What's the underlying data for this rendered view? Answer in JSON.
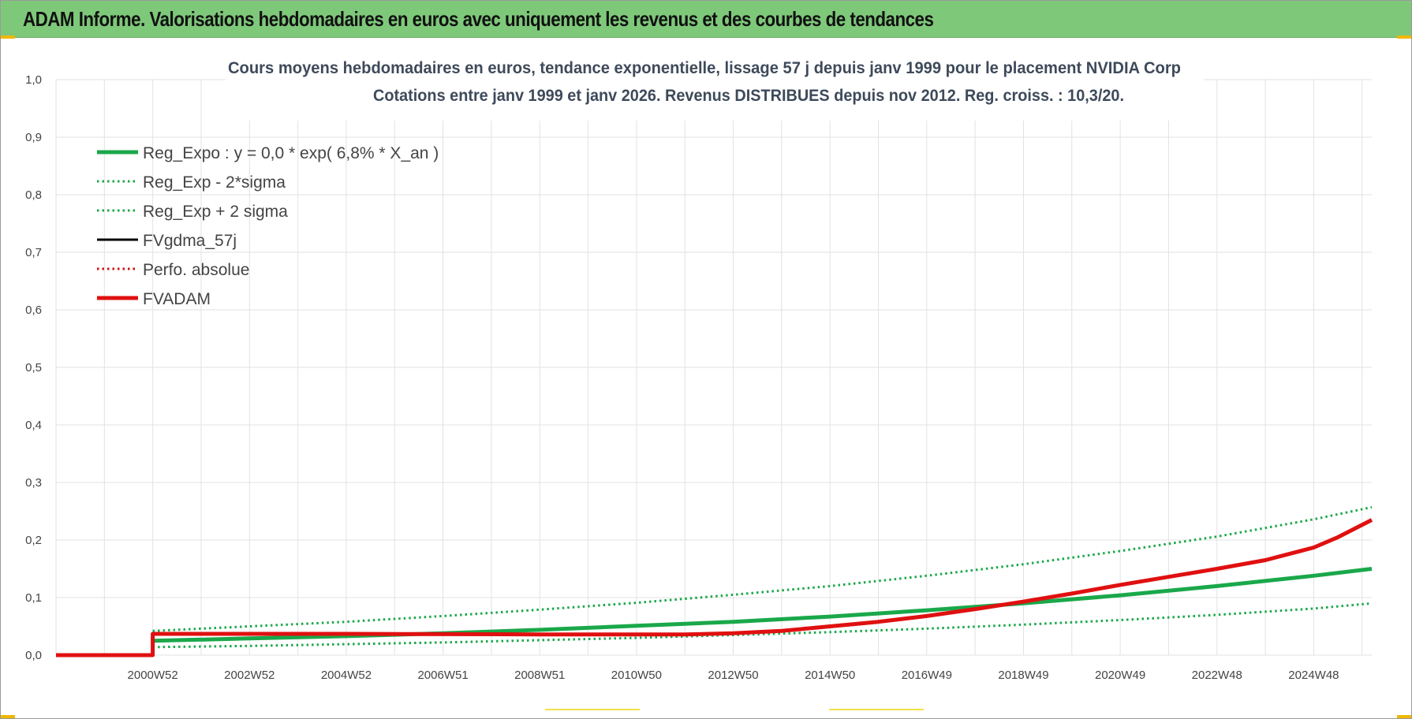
{
  "header": {
    "title": "ADAM Informe. Valorisations hebdomadaires en euros avec uniquement les revenus et des courbes de tendances"
  },
  "colors": {
    "banner": "#7ec87a",
    "reg_expo": "#1aa84a",
    "fvadam": "#e01010",
    "fvgdma": "#000000",
    "perfo": "#cc1010",
    "grid": "#e2e2e2",
    "accent": "#f0b800"
  },
  "chart_data": {
    "type": "line",
    "title": "Cours moyens hebdomadaires en euros, tendance exponentielle, lissage 57 j depuis janv 1999  pour le placement NVIDIA Corp",
    "subtitle": "Cotations entre janv 1999 et janv 2026. Revenus DISTRIBUES depuis nov 2012.  Reg. croiss. : 10,3/20.",
    "xlabel": "",
    "ylabel": "",
    "x_range": [
      1999.0,
      2026.2
    ],
    "ylim": [
      0.0,
      1.0
    ],
    "y_ticks": [
      "1,0",
      "0,9",
      "0,8",
      "0,7",
      "0,6",
      "0,5",
      "0,4",
      "0,3",
      "0,2",
      "0,1",
      "0,0"
    ],
    "x_ticks": [
      {
        "label": "2000W52",
        "x": 2001.0
      },
      {
        "label": "2002W52",
        "x": 2003.0
      },
      {
        "label": "2004W52",
        "x": 2005.0
      },
      {
        "label": "2006W51",
        "x": 2007.0
      },
      {
        "label": "2008W51",
        "x": 2009.0
      },
      {
        "label": "2010W50",
        "x": 2011.0
      },
      {
        "label": "2012W50",
        "x": 2013.0
      },
      {
        "label": "2014W50",
        "x": 2015.0
      },
      {
        "label": "2016W49",
        "x": 2017.0
      },
      {
        "label": "2018W49",
        "x": 2019.0
      },
      {
        "label": "2020W49",
        "x": 2021.0
      },
      {
        "label": "2022W48",
        "x": 2023.0
      },
      {
        "label": "2024W48",
        "x": 2025.0
      }
    ],
    "grid": true,
    "legend_position": "top-left",
    "legend": [
      {
        "key": "reg_expo",
        "label": "Reg_Expo : y = 0,0 * exp( 6,8% *  X_an )",
        "style": "solid-thick",
        "color": "#1aa84a"
      },
      {
        "key": "reg_minus",
        "label": "Reg_Exp - 2*sigma",
        "style": "dotted",
        "color": "#1aa84a"
      },
      {
        "key": "reg_plus",
        "label": "Reg_Exp + 2 sigma",
        "style": "dotted",
        "color": "#1aa84a"
      },
      {
        "key": "fvgdma",
        "label": "FVgdma_57j",
        "style": "solid",
        "color": "#000000"
      },
      {
        "key": "perfo",
        "label": "Perfo. absolue",
        "style": "dotted",
        "color": "#cc1010"
      },
      {
        "key": "fvadam",
        "label": "FVADAM",
        "style": "solid-thick",
        "color": "#e01010"
      }
    ],
    "series": [
      {
        "name": "Reg_Expo",
        "style": "solid-thick",
        "color": "#1aa84a",
        "x": [
          2001.0,
          2003.0,
          2005.0,
          2007.0,
          2009.0,
          2011.0,
          2013.0,
          2015.0,
          2017.0,
          2019.0,
          2021.0,
          2023.0,
          2025.0,
          2026.2
        ],
        "values": [
          0.025,
          0.029,
          0.033,
          0.038,
          0.044,
          0.051,
          0.058,
          0.067,
          0.078,
          0.09,
          0.104,
          0.12,
          0.138,
          0.15
        ]
      },
      {
        "name": "Reg_Exp + 2 sigma",
        "style": "dotted",
        "color": "#1aa84a",
        "x": [
          2001.0,
          2003.0,
          2005.0,
          2007.0,
          2009.0,
          2011.0,
          2013.0,
          2015.0,
          2017.0,
          2019.0,
          2021.0,
          2023.0,
          2025.0,
          2026.2
        ],
        "values": [
          0.042,
          0.05,
          0.058,
          0.068,
          0.079,
          0.091,
          0.105,
          0.12,
          0.138,
          0.158,
          0.181,
          0.206,
          0.236,
          0.257
        ]
      },
      {
        "name": "Reg_Exp - 2*sigma",
        "style": "dotted",
        "color": "#1aa84a",
        "x": [
          2001.0,
          2003.0,
          2005.0,
          2007.0,
          2009.0,
          2011.0,
          2013.0,
          2015.0,
          2017.0,
          2019.0,
          2021.0,
          2023.0,
          2025.0,
          2026.2
        ],
        "values": [
          0.014,
          0.016,
          0.019,
          0.022,
          0.026,
          0.03,
          0.035,
          0.04,
          0.046,
          0.053,
          0.061,
          0.07,
          0.081,
          0.09
        ]
      },
      {
        "name": "FVADAM",
        "style": "solid-thick",
        "color": "#e01010",
        "x": [
          1999.0,
          2001.0,
          2001.0,
          2005.0,
          2009.0,
          2012.0,
          2013.0,
          2014.0,
          2015.0,
          2016.0,
          2017.0,
          2018.0,
          2019.0,
          2020.0,
          2021.0,
          2022.0,
          2023.0,
          2024.0,
          2025.0,
          2025.5,
          2026.2
        ],
        "values": [
          0.0,
          0.0,
          0.037,
          0.037,
          0.036,
          0.036,
          0.038,
          0.042,
          0.05,
          0.058,
          0.068,
          0.08,
          0.093,
          0.107,
          0.122,
          0.136,
          0.15,
          0.165,
          0.187,
          0.205,
          0.235
        ]
      }
    ]
  }
}
